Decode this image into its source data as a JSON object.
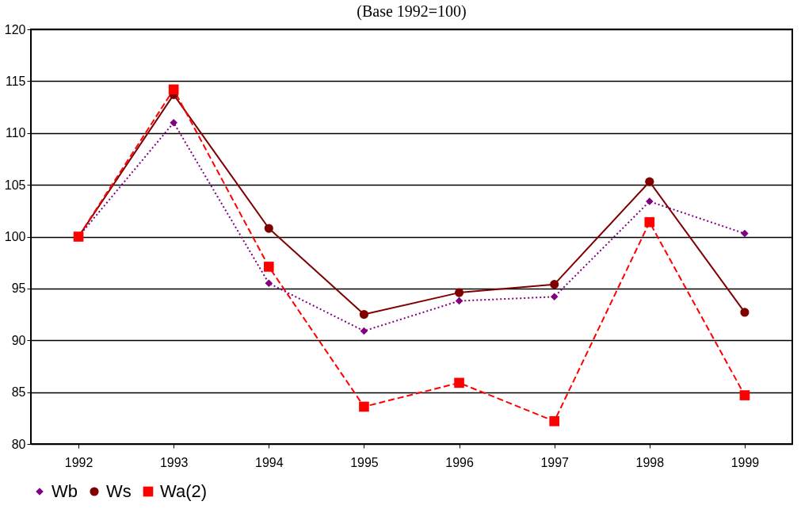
{
  "chart_data": {
    "type": "line",
    "title": "(Base 1992=100)",
    "categories": [
      "1992",
      "1993",
      "1994",
      "1995",
      "1996",
      "1997",
      "1998",
      "1999"
    ],
    "series": [
      {
        "name": "Wb",
        "color": "#800080",
        "marker": "diamond",
        "line_style": "dotted",
        "values": [
          100,
          111,
          95.5,
          90.9,
          93.8,
          94.2,
          103.4,
          100.3
        ]
      },
      {
        "name": "Ws",
        "color": "#800000",
        "marker": "circle",
        "line_style": "solid",
        "values": [
          100,
          113.7,
          100.8,
          92.5,
          94.6,
          95.4,
          105.3,
          92.7
        ]
      },
      {
        "name": "Wa(2)",
        "color": "#ff0000",
        "marker": "square",
        "line_style": "dashed",
        "values": [
          100,
          114.2,
          97.1,
          83.6,
          85.9,
          82.2,
          101.4,
          84.7
        ]
      }
    ],
    "ylim": [
      80,
      120
    ],
    "yticks": [
      80,
      85,
      90,
      95,
      100,
      105,
      110,
      115,
      120
    ],
    "grid": "y",
    "legend": "bottom"
  }
}
